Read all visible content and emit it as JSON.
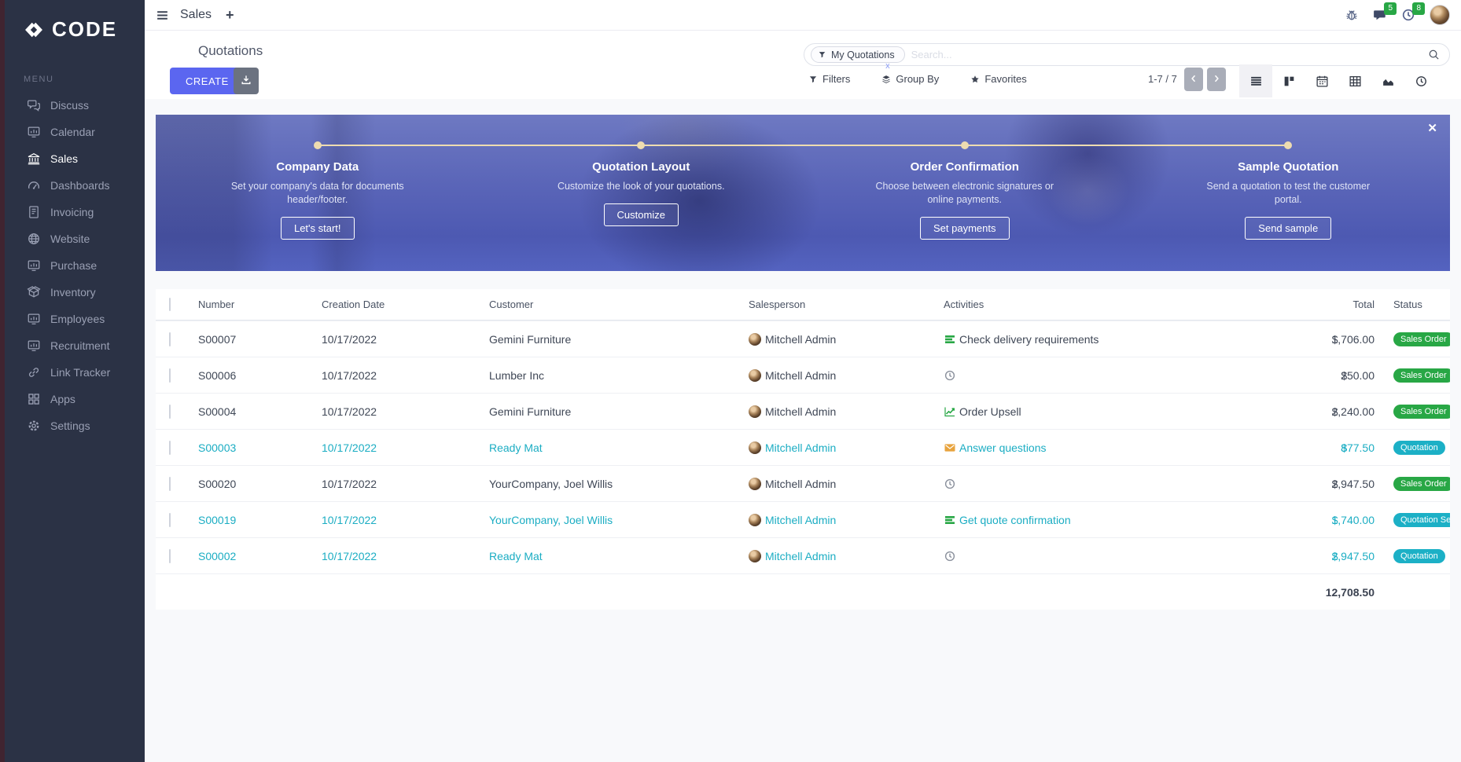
{
  "sidebar": {
    "logo_text": "CODE",
    "menu_label": "MENU",
    "items": [
      {
        "label": "Discuss",
        "icon": "discuss",
        "active": false
      },
      {
        "label": "Calendar",
        "icon": "monitor",
        "active": false
      },
      {
        "label": "Sales",
        "icon": "bank",
        "active": true
      },
      {
        "label": "Dashboards",
        "icon": "gauge",
        "active": false
      },
      {
        "label": "Invoicing",
        "icon": "invoice",
        "active": false
      },
      {
        "label": "Website",
        "icon": "globe",
        "active": false
      },
      {
        "label": "Purchase",
        "icon": "monitor",
        "active": false
      },
      {
        "label": "Inventory",
        "icon": "box",
        "active": false
      },
      {
        "label": "Employees",
        "icon": "monitor",
        "active": false
      },
      {
        "label": "Recruitment",
        "icon": "monitor",
        "active": false
      },
      {
        "label": "Link Tracker",
        "icon": "link",
        "active": false
      },
      {
        "label": "Apps",
        "icon": "grid",
        "active": false
      },
      {
        "label": "Settings",
        "icon": "gear",
        "active": false
      }
    ]
  },
  "topbar": {
    "app_title": "Sales",
    "new_tab_label": "+",
    "message_badge": "5",
    "activity_badge": "8"
  },
  "control_panel": {
    "title": "Quotations",
    "search": {
      "facet_label": "My Quotations",
      "facet_remove": "x",
      "placeholder": "Search..."
    },
    "create_label": "CREATE",
    "filters_label": "Filters",
    "group_by_label": "Group By",
    "favorites_label": "Favorites",
    "pager": "1-7 / 7"
  },
  "banner": {
    "close_label": "✕",
    "steps": [
      {
        "title": "Company Data",
        "description": "Set your company's data for documents header/footer.",
        "button": "Let's start!"
      },
      {
        "title": "Quotation Layout",
        "description": "Customize the look of your quotations.",
        "button": "Customize"
      },
      {
        "title": "Order Confirmation",
        "description": "Choose between electronic signatures or online payments.",
        "button": "Set payments"
      },
      {
        "title": "Sample Quotation",
        "description": "Send a quotation to test the customer portal.",
        "button": "Send sample"
      }
    ]
  },
  "table": {
    "columns": [
      "Number",
      "Creation Date",
      "Customer",
      "Salesperson",
      "Activities",
      "Total",
      "Status"
    ],
    "currency": "$",
    "rows": [
      {
        "number": "S00007",
        "date": "10/17/2022",
        "customer": "Gemini Furniture",
        "salesperson": "Mitchell Admin",
        "activity": {
          "icon": "list",
          "label": "Check delivery requirements"
        },
        "total": "1,706.00",
        "status": "Sales Order",
        "status_color": "green",
        "highlight": false
      },
      {
        "number": "S00006",
        "date": "10/17/2022",
        "customer": "Lumber Inc",
        "salesperson": "Mitchell Admin",
        "activity": {
          "icon": "clock",
          "label": ""
        },
        "total": "250.00",
        "status": "Sales Order",
        "status_color": "green",
        "highlight": false
      },
      {
        "number": "S00004",
        "date": "10/17/2022",
        "customer": "Gemini Furniture",
        "salesperson": "Mitchell Admin",
        "activity": {
          "icon": "chart",
          "label": "Order Upsell"
        },
        "total": "2,240.00",
        "status": "Sales Order",
        "status_color": "green",
        "highlight": false
      },
      {
        "number": "S00003",
        "date": "10/17/2022",
        "customer": "Ready Mat",
        "salesperson": "Mitchell Admin",
        "activity": {
          "icon": "envelope",
          "label": "Answer questions"
        },
        "total": "877.50",
        "status": "Quotation",
        "status_color": "teal",
        "highlight": true
      },
      {
        "number": "S00020",
        "date": "10/17/2022",
        "customer": "YourCompany, Joel Willis",
        "salesperson": "Mitchell Admin",
        "activity": {
          "icon": "clock",
          "label": ""
        },
        "total": "2,947.50",
        "status": "Sales Order",
        "status_color": "green",
        "highlight": false
      },
      {
        "number": "S00019",
        "date": "10/17/2022",
        "customer": "YourCompany, Joel Willis",
        "salesperson": "Mitchell Admin",
        "activity": {
          "icon": "list",
          "label": "Get quote confirmation"
        },
        "total": "1,740.00",
        "status": "Quotation Sent",
        "status_color": "teal",
        "highlight": true
      },
      {
        "number": "S00002",
        "date": "10/17/2022",
        "customer": "Ready Mat",
        "salesperson": "Mitchell Admin",
        "activity": {
          "icon": "clock",
          "label": ""
        },
        "total": "2,947.50",
        "status": "Quotation",
        "status_color": "teal",
        "highlight": true
      }
    ],
    "footer_total": "12,708.50"
  }
}
